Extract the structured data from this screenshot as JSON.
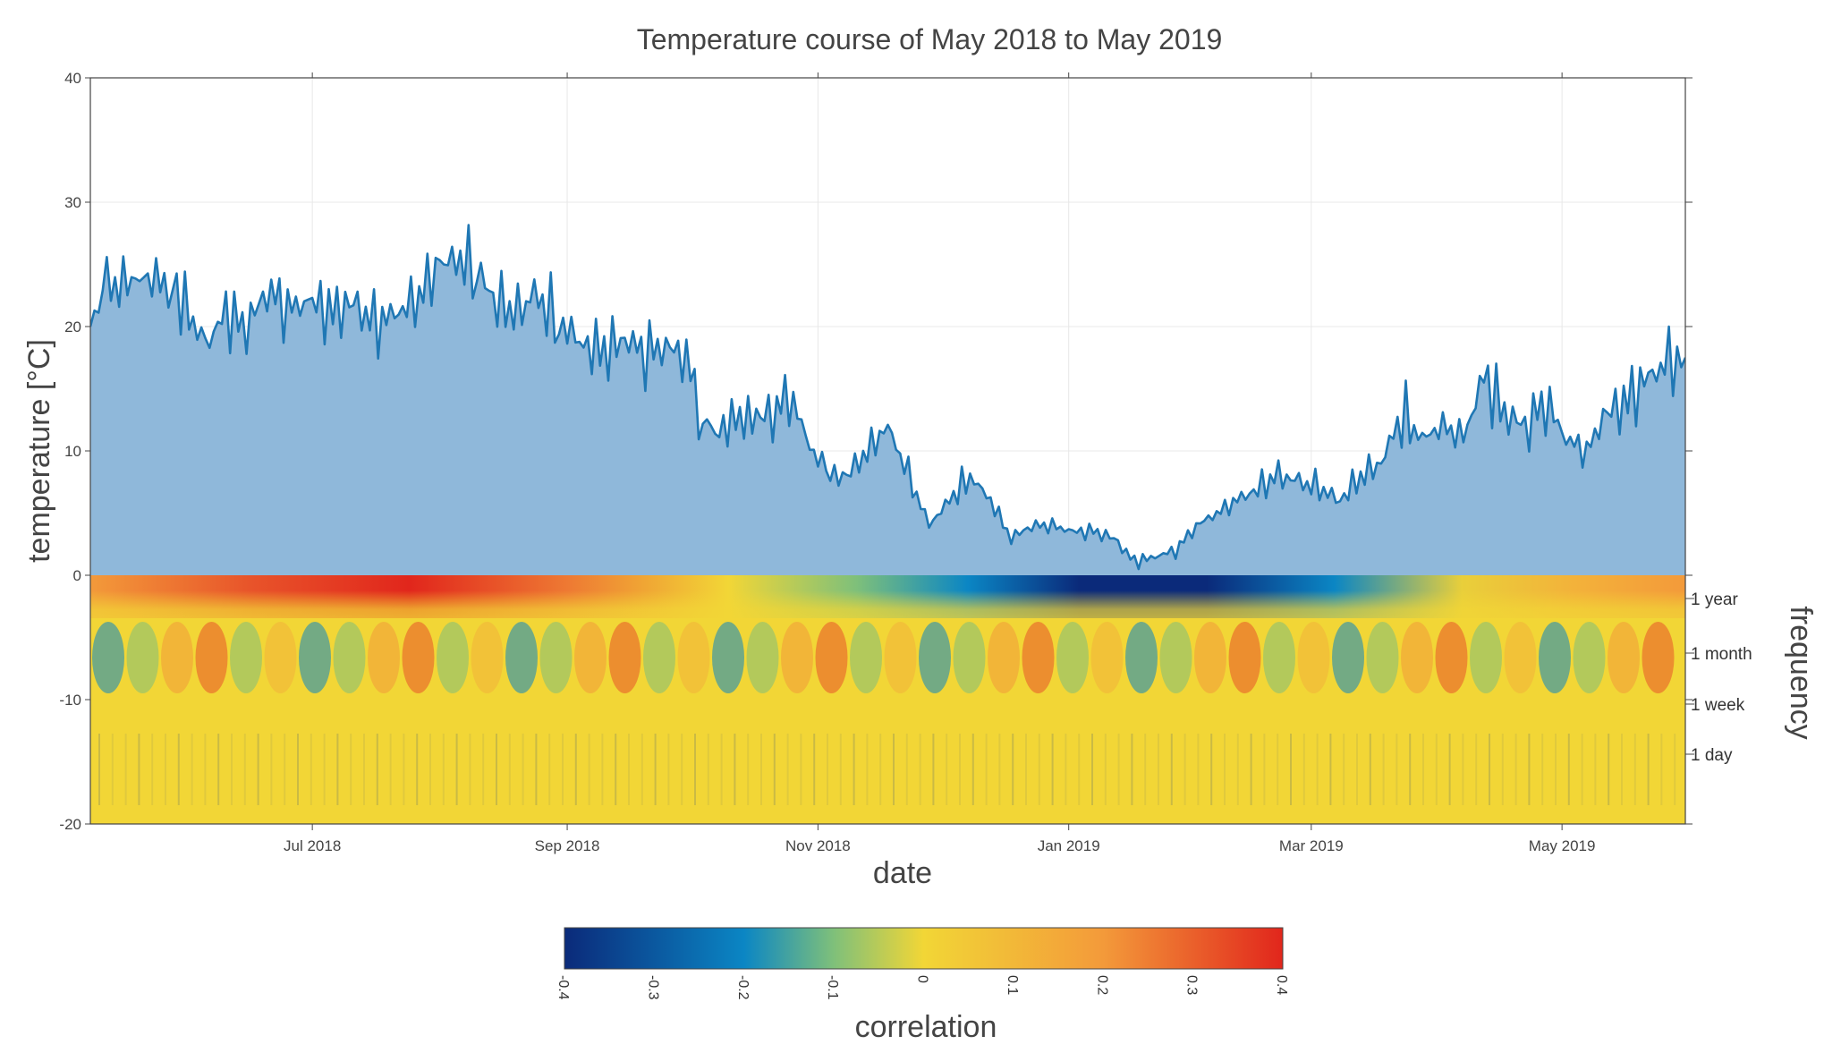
{
  "chart_data": {
    "type": "area",
    "title": "Temperature course of May 2018 to May 2019",
    "xlabel": "date",
    "ylabel": "temperature [°C]",
    "ylim": [
      -20,
      40
    ],
    "yticks": [
      -20,
      -10,
      0,
      10,
      20,
      30,
      40
    ],
    "xlim": [
      "2018-05-08",
      "2019-05-31"
    ],
    "xticks": [
      {
        "date": "2018-07-01",
        "label": "Jul 2018"
      },
      {
        "date": "2018-09-01",
        "label": "Sep 2018"
      },
      {
        "date": "2018-11-01",
        "label": "Nov 2018"
      },
      {
        "date": "2019-01-01",
        "label": "Jan 2019"
      },
      {
        "date": "2019-03-01",
        "label": "Mar 2019"
      },
      {
        "date": "2019-05-01",
        "label": "May 2019"
      }
    ],
    "grid": true,
    "series": [
      {
        "name": "temperature",
        "color": "#1f77b4",
        "fill": "#8fb8da",
        "x": [
          "2018-05-08",
          "2018-05-12",
          "2018-05-20",
          "2018-05-28",
          "2018-06-05",
          "2018-06-10",
          "2018-06-15",
          "2018-06-20",
          "2018-06-25",
          "2018-07-01",
          "2018-07-06",
          "2018-07-11",
          "2018-07-16",
          "2018-07-21",
          "2018-07-26",
          "2018-08-01",
          "2018-08-06",
          "2018-08-10",
          "2018-08-15",
          "2018-08-20",
          "2018-08-24",
          "2018-08-30",
          "2018-09-05",
          "2018-09-10",
          "2018-09-15",
          "2018-09-20",
          "2018-09-25",
          "2018-09-30",
          "2018-10-04",
          "2018-10-08",
          "2018-10-15",
          "2018-10-20",
          "2018-10-25",
          "2018-10-30",
          "2018-11-03",
          "2018-11-08",
          "2018-11-13",
          "2018-11-18",
          "2018-11-23",
          "2018-11-28",
          "2018-12-03",
          "2018-12-08",
          "2018-12-13",
          "2018-12-18",
          "2018-12-23",
          "2018-12-28",
          "2019-01-02",
          "2019-01-07",
          "2019-01-12",
          "2019-01-17",
          "2019-01-22",
          "2019-01-27",
          "2019-02-01",
          "2019-02-06",
          "2019-02-11",
          "2019-02-16",
          "2019-02-21",
          "2019-02-26",
          "2019-03-03",
          "2019-03-08",
          "2019-03-13",
          "2019-03-18",
          "2019-03-23",
          "2019-03-28",
          "2019-04-02",
          "2019-04-07",
          "2019-04-12",
          "2019-04-17",
          "2019-04-22",
          "2019-04-27",
          "2019-05-02",
          "2019-05-07",
          "2019-05-12",
          "2019-05-17",
          "2019-05-22",
          "2019-05-27",
          "2019-05-31"
        ],
        "values": [
          20,
          23,
          24,
          23.5,
          18.5,
          21,
          20,
          23,
          21.5,
          22,
          21,
          22,
          20,
          21,
          22,
          25,
          25.5,
          24.5,
          22,
          21,
          22.5,
          20.5,
          18.5,
          18,
          19,
          18,
          18.5,
          17.5,
          12.5,
          11.5,
          13,
          12.5,
          14.5,
          10.5,
          8,
          8,
          10,
          12,
          8,
          4,
          6,
          8,
          6,
          3,
          4,
          4,
          3.5,
          3.5,
          3,
          1,
          1.5,
          2,
          4,
          5,
          6,
          7,
          8,
          7.5,
          7,
          6,
          8,
          9,
          13,
          11,
          12,
          11,
          16,
          13,
          12,
          14,
          11,
          10,
          13,
          14,
          16,
          17,
          17.5
        ]
      }
    ],
    "heatmap": {
      "name": "wavelet correlation",
      "colorscale_label": "correlation",
      "zlim": [
        -0.4,
        0.4
      ],
      "colorbar_ticks": [
        -0.4,
        -0.3,
        -0.2,
        -0.1,
        0,
        0.1,
        0.2,
        0.3,
        0.4
      ],
      "frequency_axis_label": "frequency",
      "frequency_labels": [
        "1 year",
        "1 month",
        "1 week",
        "1 day"
      ]
    }
  }
}
